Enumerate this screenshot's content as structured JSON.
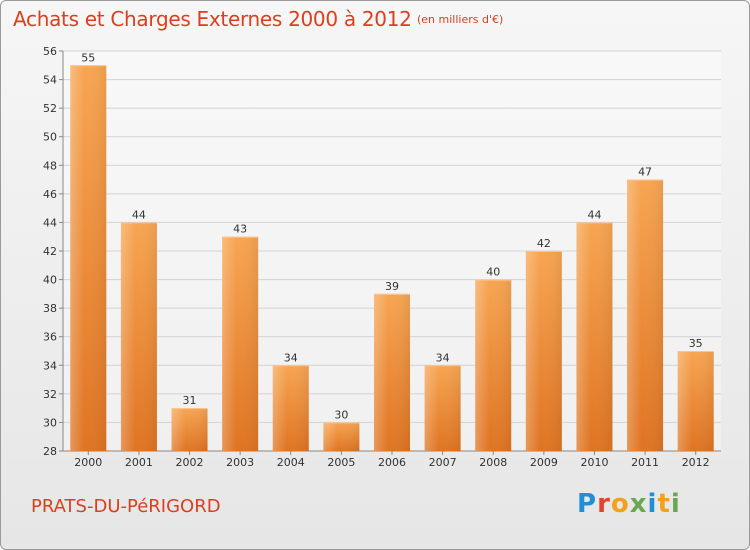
{
  "header": {
    "title": "Achats et Charges Externes 2000 à 2012",
    "subtitle": "(en milliers d'€)"
  },
  "footer": {
    "commune": "PRATS-DU-PéRIGORD",
    "logo_text": "Proxiti",
    "logo_colors": [
      "#1f8fd6",
      "#e6442a",
      "#f2a21a",
      "#6aa84f",
      "#1f8fd6",
      "#f2a21a",
      "#6aa84f"
    ]
  },
  "chart_data": {
    "type": "bar",
    "categories": [
      "2000",
      "2001",
      "2002",
      "2003",
      "2004",
      "2005",
      "2006",
      "2007",
      "2008",
      "2009",
      "2010",
      "2011",
      "2012"
    ],
    "values": [
      55,
      44,
      31,
      43,
      34,
      30,
      39,
      34,
      40,
      42,
      44,
      47,
      35
    ],
    "title": "Achats et Charges Externes 2000 à 2012",
    "subtitle": "(en milliers d'€)",
    "xlabel": "",
    "ylabel": "",
    "ylim": [
      28,
      56
    ],
    "yticks": [
      28,
      30,
      32,
      34,
      36,
      38,
      40,
      42,
      44,
      46,
      48,
      50,
      52,
      54,
      56
    ],
    "grid": true,
    "bar_color": "#f0923a",
    "data_labels": true
  }
}
